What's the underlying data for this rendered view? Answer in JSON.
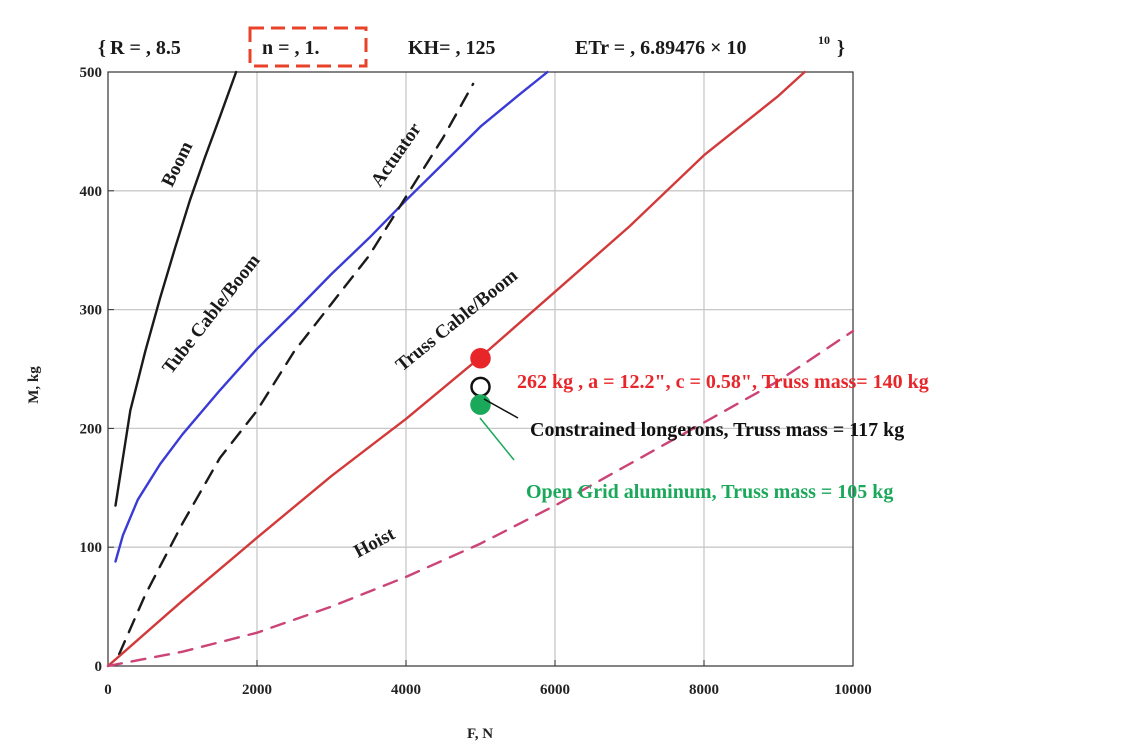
{
  "header": {
    "brace_open": "{",
    "r_text": "R = , 8.5",
    "n_text": "n = , 1.",
    "kh_text": "KH= , 125",
    "etr_text": "ETr = , 6.89476 × 10",
    "etr_exp": "10",
    "brace_close": "}"
  },
  "colors": {
    "boom": "#1a1a1a",
    "tube": "#3a3ad6",
    "actuator": "#1a1a1a",
    "truss": "#d23a3a",
    "hoist": "#cc4477",
    "grid": "#c8c8c8",
    "highlight_box": "#e8432a",
    "annot_red": "#e8262a",
    "annot_black": "#111111",
    "annot_green": "#1aa85a"
  },
  "chart_data": {
    "type": "line",
    "xlabel": "F, N",
    "ylabel": "M, kg",
    "xlim": [
      0,
      10000
    ],
    "ylim": [
      0,
      500
    ],
    "xticks": [
      0,
      2000,
      4000,
      6000,
      8000,
      10000
    ],
    "xtick_labels": [
      "0",
      "2000",
      "4000",
      "6000",
      "8000",
      "10000"
    ],
    "yticks": [
      0,
      100,
      200,
      300,
      400,
      500
    ],
    "ytick_labels": [
      "0",
      "100",
      "200",
      "300",
      "400",
      "500"
    ],
    "grid": true,
    "series": [
      {
        "name": "Boom",
        "color_key": "boom",
        "dashed": false,
        "points": [
          [
            100,
            135
          ],
          [
            200,
            175
          ],
          [
            300,
            215
          ],
          [
            500,
            265
          ],
          [
            700,
            310
          ],
          [
            900,
            352
          ],
          [
            1100,
            392
          ],
          [
            1300,
            428
          ],
          [
            1500,
            462
          ],
          [
            1720,
            500
          ]
        ]
      },
      {
        "name": "Tube Cable/Boom",
        "color_key": "tube",
        "dashed": false,
        "points": [
          [
            100,
            88
          ],
          [
            200,
            110
          ],
          [
            400,
            140
          ],
          [
            700,
            170
          ],
          [
            1000,
            195
          ],
          [
            1500,
            232
          ],
          [
            2000,
            267
          ],
          [
            2500,
            298
          ],
          [
            3000,
            330
          ],
          [
            3500,
            360
          ],
          [
            4000,
            392
          ],
          [
            4500,
            423
          ],
          [
            5000,
            454
          ],
          [
            5500,
            480
          ],
          [
            5900,
            500
          ]
        ]
      },
      {
        "name": "Actuator",
        "color_key": "actuator",
        "dashed": true,
        "points": [
          [
            150,
            10
          ],
          [
            500,
            60
          ],
          [
            1000,
            120
          ],
          [
            1500,
            175
          ],
          [
            2000,
            215
          ],
          [
            2500,
            265
          ],
          [
            3000,
            305
          ],
          [
            3500,
            345
          ],
          [
            4000,
            395
          ],
          [
            4500,
            445
          ],
          [
            4900,
            490
          ]
        ]
      },
      {
        "name": "Truss Cable/Boom",
        "color_key": "truss",
        "dashed": false,
        "points": [
          [
            0,
            0
          ],
          [
            1000,
            55
          ],
          [
            2000,
            108
          ],
          [
            3000,
            160
          ],
          [
            4000,
            208
          ],
          [
            5000,
            260
          ],
          [
            6000,
            315
          ],
          [
            7000,
            370
          ],
          [
            8000,
            430
          ],
          [
            9000,
            480
          ],
          [
            9350,
            500
          ]
        ]
      },
      {
        "name": "Hoist",
        "color_key": "hoist",
        "dashed": true,
        "points": [
          [
            0,
            0
          ],
          [
            1000,
            12
          ],
          [
            2000,
            28
          ],
          [
            3000,
            50
          ],
          [
            4000,
            75
          ],
          [
            5000,
            103
          ],
          [
            6000,
            135
          ],
          [
            7000,
            170
          ],
          [
            8000,
            205
          ],
          [
            9000,
            240
          ],
          [
            10000,
            282
          ]
        ]
      }
    ],
    "markers": [
      {
        "x": 5000,
        "y": 259,
        "color_key": "annot_red",
        "filled": true
      },
      {
        "x": 5000,
        "y": 235,
        "color_key": "annot_black",
        "filled": false
      },
      {
        "x": 5000,
        "y": 220,
        "color_key": "annot_green",
        "filled": true
      }
    ],
    "annotations": [
      {
        "text": "262 kg ,  a = 12.2\", c = 0.58\",   Truss mass= 140 kg",
        "color_key": "annot_red"
      },
      {
        "text": "Constrained longerons, Truss mass = 117 kg",
        "color_key": "annot_black"
      },
      {
        "text": "Open Grid aluminum, Truss mass = 105 kg",
        "color_key": "annot_green"
      }
    ]
  }
}
